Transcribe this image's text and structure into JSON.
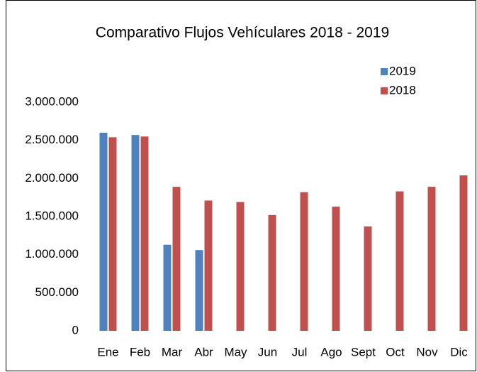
{
  "chart_data": {
    "type": "bar",
    "title": "Comparativo Flujos Vehículares 2018 - 2019",
    "categories": [
      "Ene",
      "Feb",
      "Mar",
      "Abr",
      "May",
      "Jun",
      "Jul",
      "Ago",
      "Sept",
      "Oct",
      "Nov",
      "Dic"
    ],
    "series": [
      {
        "name": "2019",
        "color": "#4f81bd",
        "values": [
          2600000,
          2570000,
          1130000,
          1060000,
          null,
          null,
          null,
          null,
          null,
          null,
          null,
          null
        ]
      },
      {
        "name": "2018",
        "color": "#c0504d",
        "values": [
          2540000,
          2550000,
          1890000,
          1710000,
          1690000,
          1520000,
          1820000,
          1630000,
          1370000,
          1830000,
          1890000,
          2040000
        ]
      }
    ],
    "ylim": [
      0,
      3000000
    ],
    "yticks": [
      0,
      {
        "value": 500000,
        "label": "500.000"
      },
      {
        "value": 1000000,
        "label": "1.000.000"
      },
      {
        "value": 1500000,
        "label": "1.500.000"
      },
      {
        "value": 2000000,
        "label": "2.000.000"
      },
      {
        "value": 2500000,
        "label": "2.500.000"
      },
      {
        "value": 3000000,
        "label": "3.000.000"
      }
    ],
    "grid": false,
    "legend": "top-right"
  }
}
